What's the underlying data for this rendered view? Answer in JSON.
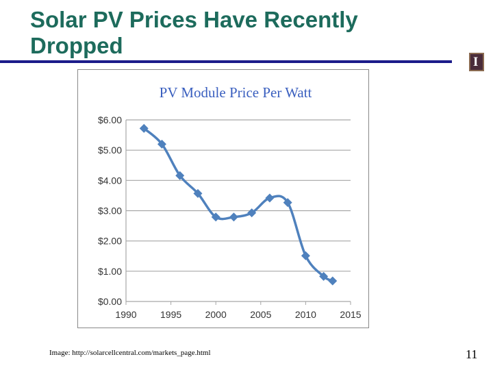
{
  "slide": {
    "title": "Solar PV Prices Have Recently Dropped",
    "caption": "Image: http://solarcellcentral.com/markets_page.html",
    "page_number": "11",
    "logo_letter": "I",
    "colors": {
      "title": "#1d6b5c",
      "rule": "#1c1c8a",
      "series": "#4f81bd",
      "chart_title": "#3a5fbf"
    }
  },
  "chart_data": {
    "type": "line",
    "title": "PV Module Price Per Watt",
    "xlabel": "",
    "ylabel": "",
    "xlim": [
      1990,
      2015
    ],
    "ylim": [
      0,
      6
    ],
    "x_ticks": [
      "1990",
      "1995",
      "2000",
      "2005",
      "2010",
      "2015"
    ],
    "y_ticks": [
      "$0.00",
      "$1.00",
      "$2.00",
      "$3.00",
      "$4.00",
      "$5.00",
      "$6.00"
    ],
    "grid": "horizontal",
    "legend": "none",
    "smoothed": true,
    "marker": "diamond",
    "series": [
      {
        "x": [
          1992,
          1994,
          1996,
          1998,
          2000,
          2002,
          2004,
          2006,
          2008,
          2010,
          2012,
          2013
        ],
        "values": [
          5.72,
          5.2,
          4.16,
          3.57,
          2.79,
          2.79,
          2.93,
          3.42,
          3.27,
          1.51,
          0.83,
          0.68
        ]
      }
    ]
  }
}
